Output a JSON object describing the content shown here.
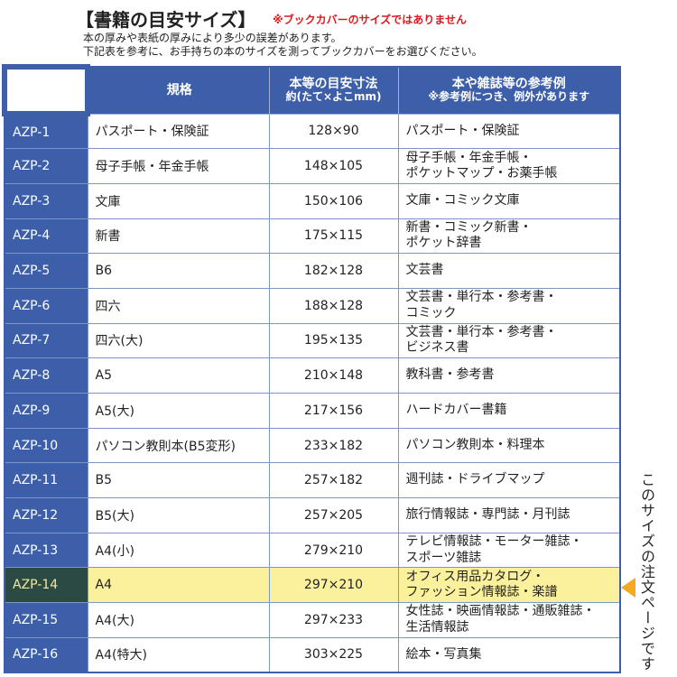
{
  "header": {
    "title": "【書籍の目安サイズ】",
    "note": "※ブックカバーのサイズではありません",
    "line1": "本の厚みや表紙の厚みにより多少の誤差があります。",
    "line2": "下記表を参考に、お手持ちの本のサイズを測ってブックカバーをお選びください。"
  },
  "table": {
    "headers": {
      "spec": "規格",
      "size": "本等の目安寸法",
      "size_sub": "約(たて×よこmm)",
      "example": "本や雑誌等の参考例",
      "example_sub": "※参考例につき、例外があります"
    },
    "rows": [
      {
        "id": "AZP-1",
        "spec": "パスポート・保険証",
        "size": "128×90",
        "example": "パスポート・保険証"
      },
      {
        "id": "AZP-2",
        "spec": "母子手帳・年金手帳",
        "size": "148×105",
        "example": "母子手帳・年金手帳・\nポケットマップ・お薬手帳"
      },
      {
        "id": "AZP-3",
        "spec": "文庫",
        "size": "150×106",
        "example": "文庫・コミック文庫"
      },
      {
        "id": "AZP-4",
        "spec": "新書",
        "size": "175×115",
        "example": "新書・コミック新書・\nポケット辞書"
      },
      {
        "id": "AZP-5",
        "spec": "B6",
        "size": "182×128",
        "example": "文芸書"
      },
      {
        "id": "AZP-6",
        "spec": "四六",
        "size": "188×128",
        "example": "文芸書・単行本・参考書・\nコミック"
      },
      {
        "id": "AZP-7",
        "spec": "四六(大)",
        "size": "195×135",
        "example": "文芸書・単行本・参考書・\nビジネス書"
      },
      {
        "id": "AZP-8",
        "spec": "A5",
        "size": "210×148",
        "example": "教科書・参考書"
      },
      {
        "id": "AZP-9",
        "spec": "A5(大)",
        "size": "217×156",
        "example": "ハードカバー書籍"
      },
      {
        "id": "AZP-10",
        "spec": "パソコン教則本(B5変形)",
        "size": "233×182",
        "example": "パソコン教則本・料理本"
      },
      {
        "id": "AZP-11",
        "spec": "B5",
        "size": "257×182",
        "example": "週刊誌・ドライブマップ"
      },
      {
        "id": "AZP-12",
        "spec": "B5(大)",
        "size": "257×205",
        "example": "旅行情報誌・専門誌・月刊誌"
      },
      {
        "id": "AZP-13",
        "spec": "A4(小)",
        "size": "279×210",
        "example": "テレビ情報誌・モーター雑誌・\nスポーツ雑誌"
      },
      {
        "id": "AZP-14",
        "spec": "A4",
        "size": "297×210",
        "example": "オフィス用品カタログ・\nファッション情報誌・楽譜",
        "highlighted": true
      },
      {
        "id": "AZP-15",
        "spec": "A4(大)",
        "size": "297×233",
        "example": "女性誌・映画情報誌・通販雑誌・\n生活情報誌"
      },
      {
        "id": "AZP-16",
        "spec": "A4(特大)",
        "size": "303×225",
        "example": "絵本・写真集"
      }
    ]
  },
  "side_label": "このサイズの注文ページです",
  "colors": {
    "header_blue": "#3d5fa9",
    "highlight": "#fbf19c",
    "arrow": "#f6a821",
    "note_red": "#e0191e"
  },
  "icons": {
    "pointer": "triangle-left-icon"
  }
}
